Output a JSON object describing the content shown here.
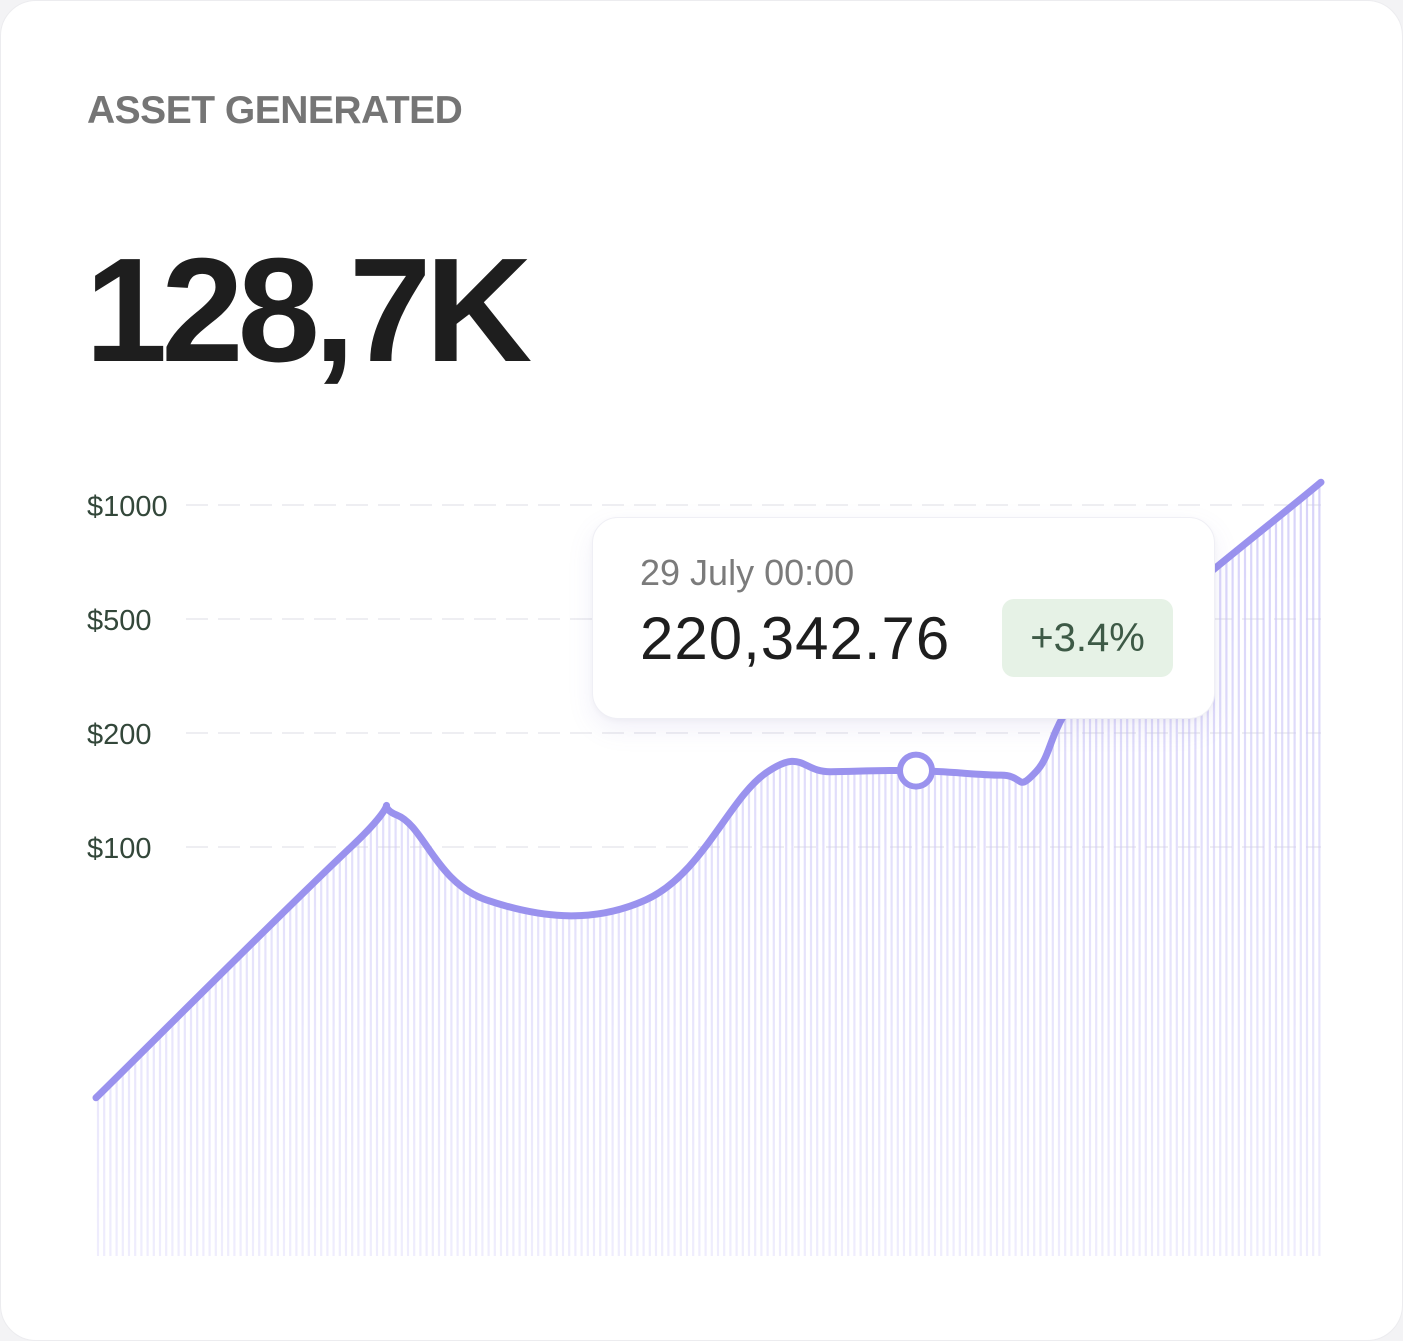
{
  "card": {
    "title": "ASSET GENERATED",
    "total": "128,7K"
  },
  "tooltip": {
    "date": "29 July 00:00",
    "value": "220,342.76",
    "change": "+3.4%",
    "change_color": "#3d5a46",
    "change_bg": "#e6f2e6"
  },
  "chart_data": {
    "type": "area",
    "title": "",
    "xlabel": "",
    "ylabel": "",
    "y_scale": "categorical-ticks",
    "y_ticks": [
      {
        "label": "$1000",
        "value": 1000
      },
      {
        "label": "$500",
        "value": 500
      },
      {
        "label": "$200",
        "value": 200
      },
      {
        "label": "$100",
        "value": 100
      }
    ],
    "grid": true,
    "legend": "none",
    "line_color": "#9a92ee",
    "fill_color": "#c9c3f7",
    "series": [
      {
        "values": [
          5,
          100,
          128,
          80,
          80,
          165,
          166,
          167,
          163,
          166,
          370,
          1100
        ]
      }
    ],
    "highlight": {
      "index": 7,
      "label": "29 July 00:00",
      "value": "220,342.76",
      "change": "+3.4%"
    }
  }
}
